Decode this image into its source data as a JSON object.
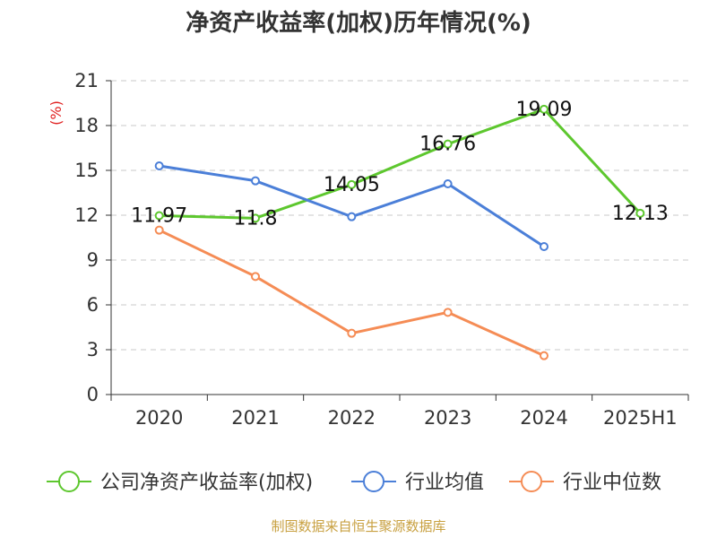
{
  "chart_data": {
    "type": "line",
    "title": "净资产收益率(加权)历年情况(%)",
    "ylabel": "(%)",
    "categories": [
      "2020",
      "2021",
      "2022",
      "2023",
      "2024",
      "2025H1"
    ],
    "ylim": [
      0,
      21
    ],
    "yticks": [
      "0",
      "3",
      "6",
      "9",
      "12",
      "15",
      "18",
      "21"
    ],
    "grid": true,
    "legend_position": "bottom",
    "series": [
      {
        "name": "公司净资产收益率(加权)",
        "color": "#5dc72e",
        "values": [
          11.97,
          11.8,
          14.05,
          16.76,
          19.09,
          12.13
        ],
        "labels": [
          "11.97",
          "11.8",
          "14.05",
          "16.76",
          "19.09",
          "12.13"
        ]
      },
      {
        "name": "行业均值",
        "color": "#4b7fd8",
        "values": [
          15.3,
          14.3,
          11.9,
          14.1,
          9.9,
          null
        ]
      },
      {
        "name": "行业中位数",
        "color": "#f58c55",
        "values": [
          11.0,
          7.9,
          4.1,
          5.5,
          2.6,
          null
        ]
      }
    ]
  },
  "source": "制图数据来自恒生聚源数据库"
}
